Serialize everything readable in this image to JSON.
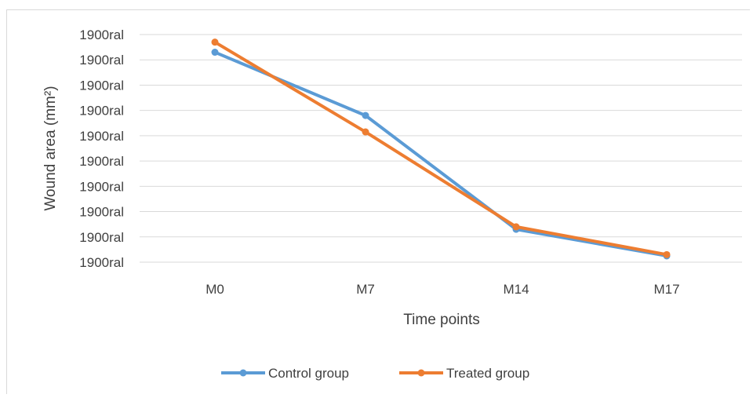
{
  "chart_data": {
    "type": "line",
    "xlabel": "Time points",
    "ylabel": "Wound area (mm²)",
    "categories": [
      "M0",
      "M7",
      "M14",
      "M17"
    ],
    "y_tick_labels": [
      "1900ral",
      "1900ral",
      "1900ral",
      "1900ral",
      "1900ral",
      "1900ral",
      "1900ral",
      "1900ral",
      "1900ral",
      "1900ral"
    ],
    "ylim": [
      0,
      9
    ],
    "grid": true,
    "legend": "bottom",
    "series": [
      {
        "name": "Control group",
        "color": "#5b9bd5",
        "values": [
          8.3,
          5.8,
          1.3,
          0.25
        ]
      },
      {
        "name": "Treated group",
        "color": "#ed7d31",
        "values": [
          8.7,
          5.15,
          1.4,
          0.3
        ]
      }
    ]
  }
}
